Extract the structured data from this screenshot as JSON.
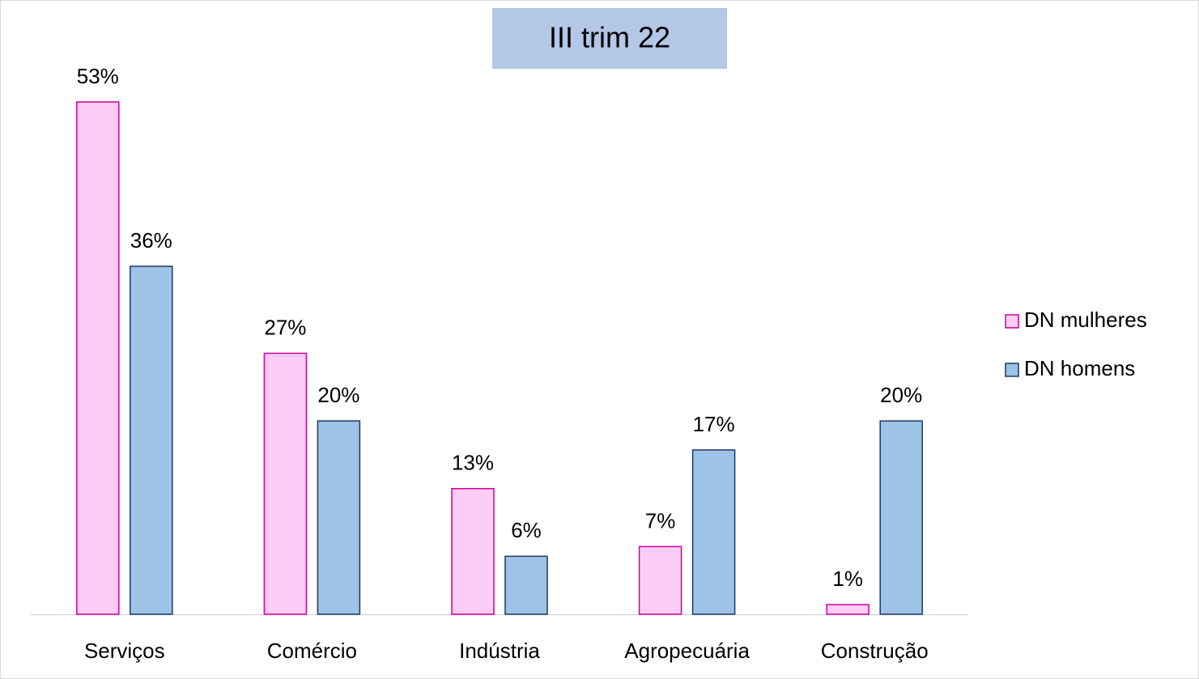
{
  "chart_data": {
    "type": "bar",
    "title": "III trim 22",
    "categories": [
      "Serviços",
      "Comércio",
      "Indústria",
      "Agropecuária",
      "Construção"
    ],
    "series": [
      {
        "name": "DN mulheres",
        "color": "#ffccf5",
        "edge": "#cc0099",
        "values": [
          53,
          27,
          13,
          7,
          1
        ],
        "value_labels": [
          "53%",
          "27%",
          "13%",
          "7%",
          "1%"
        ]
      },
      {
        "name": "DN homens",
        "color": "#9dc3e6",
        "edge": "#1f3864",
        "values": [
          36,
          20,
          6,
          17,
          20
        ],
        "value_labels": [
          "36%",
          "20%",
          "6%",
          "17%",
          "20%"
        ]
      }
    ],
    "legend": "right"
  }
}
